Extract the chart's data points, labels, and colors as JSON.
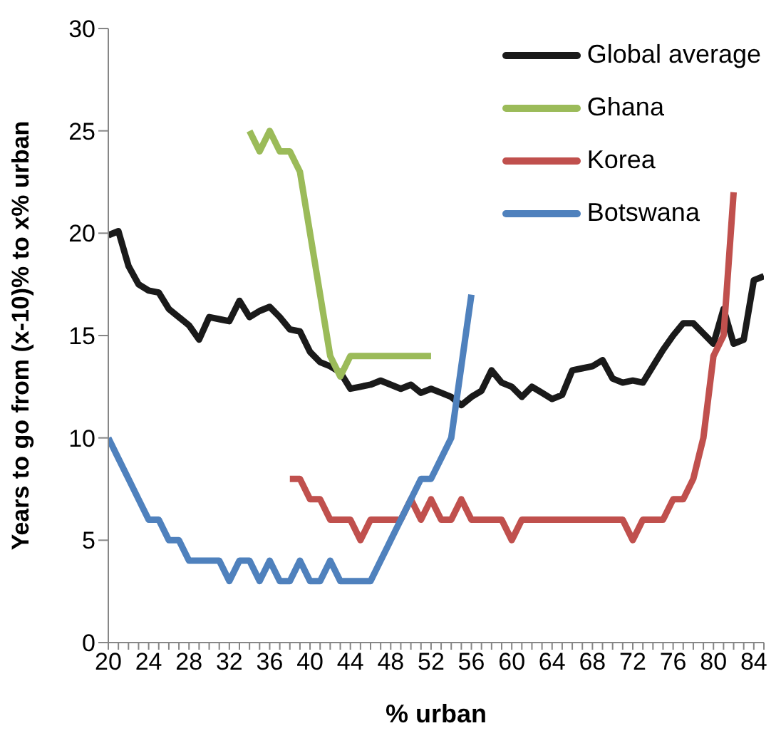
{
  "chart_data": {
    "type": "line",
    "xlabel": "% urban",
    "ylabel": "Years to go from (x-10)% to x% urban",
    "x": [
      20,
      21,
      22,
      23,
      24,
      25,
      26,
      27,
      28,
      29,
      30,
      31,
      32,
      33,
      34,
      35,
      36,
      37,
      38,
      39,
      40,
      41,
      42,
      43,
      44,
      45,
      46,
      47,
      48,
      49,
      50,
      51,
      52,
      53,
      54,
      55,
      56,
      57,
      58,
      59,
      60,
      61,
      62,
      63,
      64,
      65,
      66,
      67,
      68,
      69,
      70,
      71,
      72,
      73,
      74,
      75,
      76,
      77,
      78,
      79,
      80,
      81,
      82,
      83,
      84,
      85
    ],
    "series": [
      {
        "name": "Global average",
        "color": "#1a1a1a",
        "values": [
          19.9,
          20.1,
          18.4,
          17.5,
          17.2,
          17.1,
          16.3,
          15.9,
          15.5,
          14.8,
          15.9,
          15.8,
          15.7,
          16.7,
          15.9,
          16.2,
          16.4,
          15.9,
          15.3,
          15.2,
          14.2,
          13.7,
          13.5,
          13.2,
          12.4,
          12.5,
          12.6,
          12.8,
          12.6,
          12.4,
          12.6,
          12.2,
          12.4,
          12.2,
          12.0,
          11.6,
          12.0,
          12.3,
          13.3,
          12.7,
          12.5,
          12.0,
          12.5,
          12.2,
          11.9,
          12.1,
          13.3,
          13.4,
          13.5,
          13.8,
          12.9,
          12.7,
          12.8,
          12.7,
          13.5,
          14.3,
          15.0,
          15.6,
          15.6,
          15.1,
          14.6,
          16.3,
          14.6,
          14.8,
          17.7,
          17.9
        ]
      },
      {
        "name": "Ghana",
        "color": "#9bbb59",
        "values": [
          null,
          null,
          null,
          null,
          null,
          null,
          null,
          null,
          null,
          null,
          null,
          null,
          null,
          null,
          25,
          24,
          25,
          24,
          24,
          23,
          20,
          17,
          14,
          13,
          14,
          14,
          14,
          14,
          14,
          14,
          14,
          14,
          14,
          null,
          null,
          null,
          null,
          null,
          null,
          null,
          null,
          null,
          null,
          null,
          null,
          null,
          null,
          null,
          null,
          null,
          null,
          null,
          null,
          null,
          null,
          null,
          null,
          null,
          null,
          null,
          null,
          null,
          null,
          null,
          null,
          null
        ]
      },
      {
        "name": "Korea",
        "color": "#c0504d",
        "values": [
          null,
          null,
          null,
          null,
          null,
          null,
          null,
          null,
          null,
          null,
          null,
          null,
          null,
          null,
          null,
          null,
          null,
          null,
          8,
          8,
          7,
          7,
          6,
          6,
          6,
          5,
          6,
          6,
          6,
          6,
          7,
          6,
          7,
          6,
          6,
          7,
          6,
          6,
          6,
          6,
          5,
          6,
          6,
          6,
          6,
          6,
          6,
          6,
          6,
          6,
          6,
          6,
          5,
          6,
          6,
          6,
          7,
          7,
          8,
          10,
          14,
          15,
          22,
          null,
          null,
          null
        ]
      },
      {
        "name": "Botswana",
        "color": "#4f81bd",
        "values": [
          10,
          9,
          8,
          7,
          6,
          6,
          5,
          5,
          4,
          4,
          4,
          4,
          3,
          4,
          4,
          3,
          4,
          3,
          3,
          4,
          3,
          3,
          4,
          3,
          3,
          3,
          3,
          4,
          5,
          6,
          7,
          8,
          8,
          9,
          10,
          13.5,
          17,
          null,
          null,
          null,
          null,
          null,
          null,
          null,
          null,
          null,
          null,
          null,
          null,
          null,
          null,
          null,
          null,
          null,
          null,
          null,
          null,
          null,
          null,
          null,
          null,
          null,
          null,
          null,
          null,
          null
        ]
      }
    ],
    "xlim": [
      20,
      85
    ],
    "xticks": [
      20,
      {
        "value": 21,
        "label": null
      },
      {
        "value": 22,
        "label": null
      },
      {
        "value": 23,
        "label": null
      },
      24,
      {
        "value": 25,
        "label": null
      },
      {
        "value": 26,
        "label": null
      },
      {
        "value": 27,
        "label": null
      },
      28,
      {
        "value": 29,
        "label": null
      },
      {
        "value": 30,
        "label": null
      },
      {
        "value": 31,
        "label": null
      },
      32,
      {
        "value": 33,
        "label": null
      },
      {
        "value": 34,
        "label": null
      },
      {
        "value": 35,
        "label": null
      },
      36,
      {
        "value": 37,
        "label": null
      },
      {
        "value": 38,
        "label": null
      },
      {
        "value": 39,
        "label": null
      },
      40,
      {
        "value": 41,
        "label": null
      },
      {
        "value": 42,
        "label": null
      },
      {
        "value": 43,
        "label": null
      },
      44,
      {
        "value": 45,
        "label": null
      },
      {
        "value": 46,
        "label": null
      },
      {
        "value": 47,
        "label": null
      },
      48,
      {
        "value": 49,
        "label": null
      },
      {
        "value": 50,
        "label": null
      },
      {
        "value": 51,
        "label": null
      },
      52,
      {
        "value": 53,
        "label": null
      },
      {
        "value": 54,
        "label": null
      },
      {
        "value": 55,
        "label": null
      },
      56,
      {
        "value": 57,
        "label": null
      },
      {
        "value": 58,
        "label": null
      },
      {
        "value": 59,
        "label": null
      },
      60,
      {
        "value": 61,
        "label": null
      },
      {
        "value": 62,
        "label": null
      },
      {
        "value": 63,
        "label": null
      },
      64,
      {
        "value": 65,
        "label": null
      },
      {
        "value": 66,
        "label": null
      },
      {
        "value": 67,
        "label": null
      },
      68,
      {
        "value": 69,
        "label": null
      },
      {
        "value": 70,
        "label": null
      },
      {
        "value": 71,
        "label": null
      },
      72,
      {
        "value": 73,
        "label": null
      },
      {
        "value": 74,
        "label": null
      },
      {
        "value": 75,
        "label": null
      },
      76,
      {
        "value": 77,
        "label": null
      },
      {
        "value": 78,
        "label": null
      },
      {
        "value": 79,
        "label": null
      },
      80,
      {
        "value": 81,
        "label": null
      },
      {
        "value": 82,
        "label": null
      },
      {
        "value": 83,
        "label": null
      },
      84,
      {
        "value": 85,
        "label": null
      }
    ],
    "ylim": [
      0,
      30
    ],
    "yticks": [
      0,
      5,
      10,
      15,
      20,
      25,
      30
    ],
    "grid": false,
    "legend": "top right",
    "marker": "none",
    "line_style": "solid"
  }
}
